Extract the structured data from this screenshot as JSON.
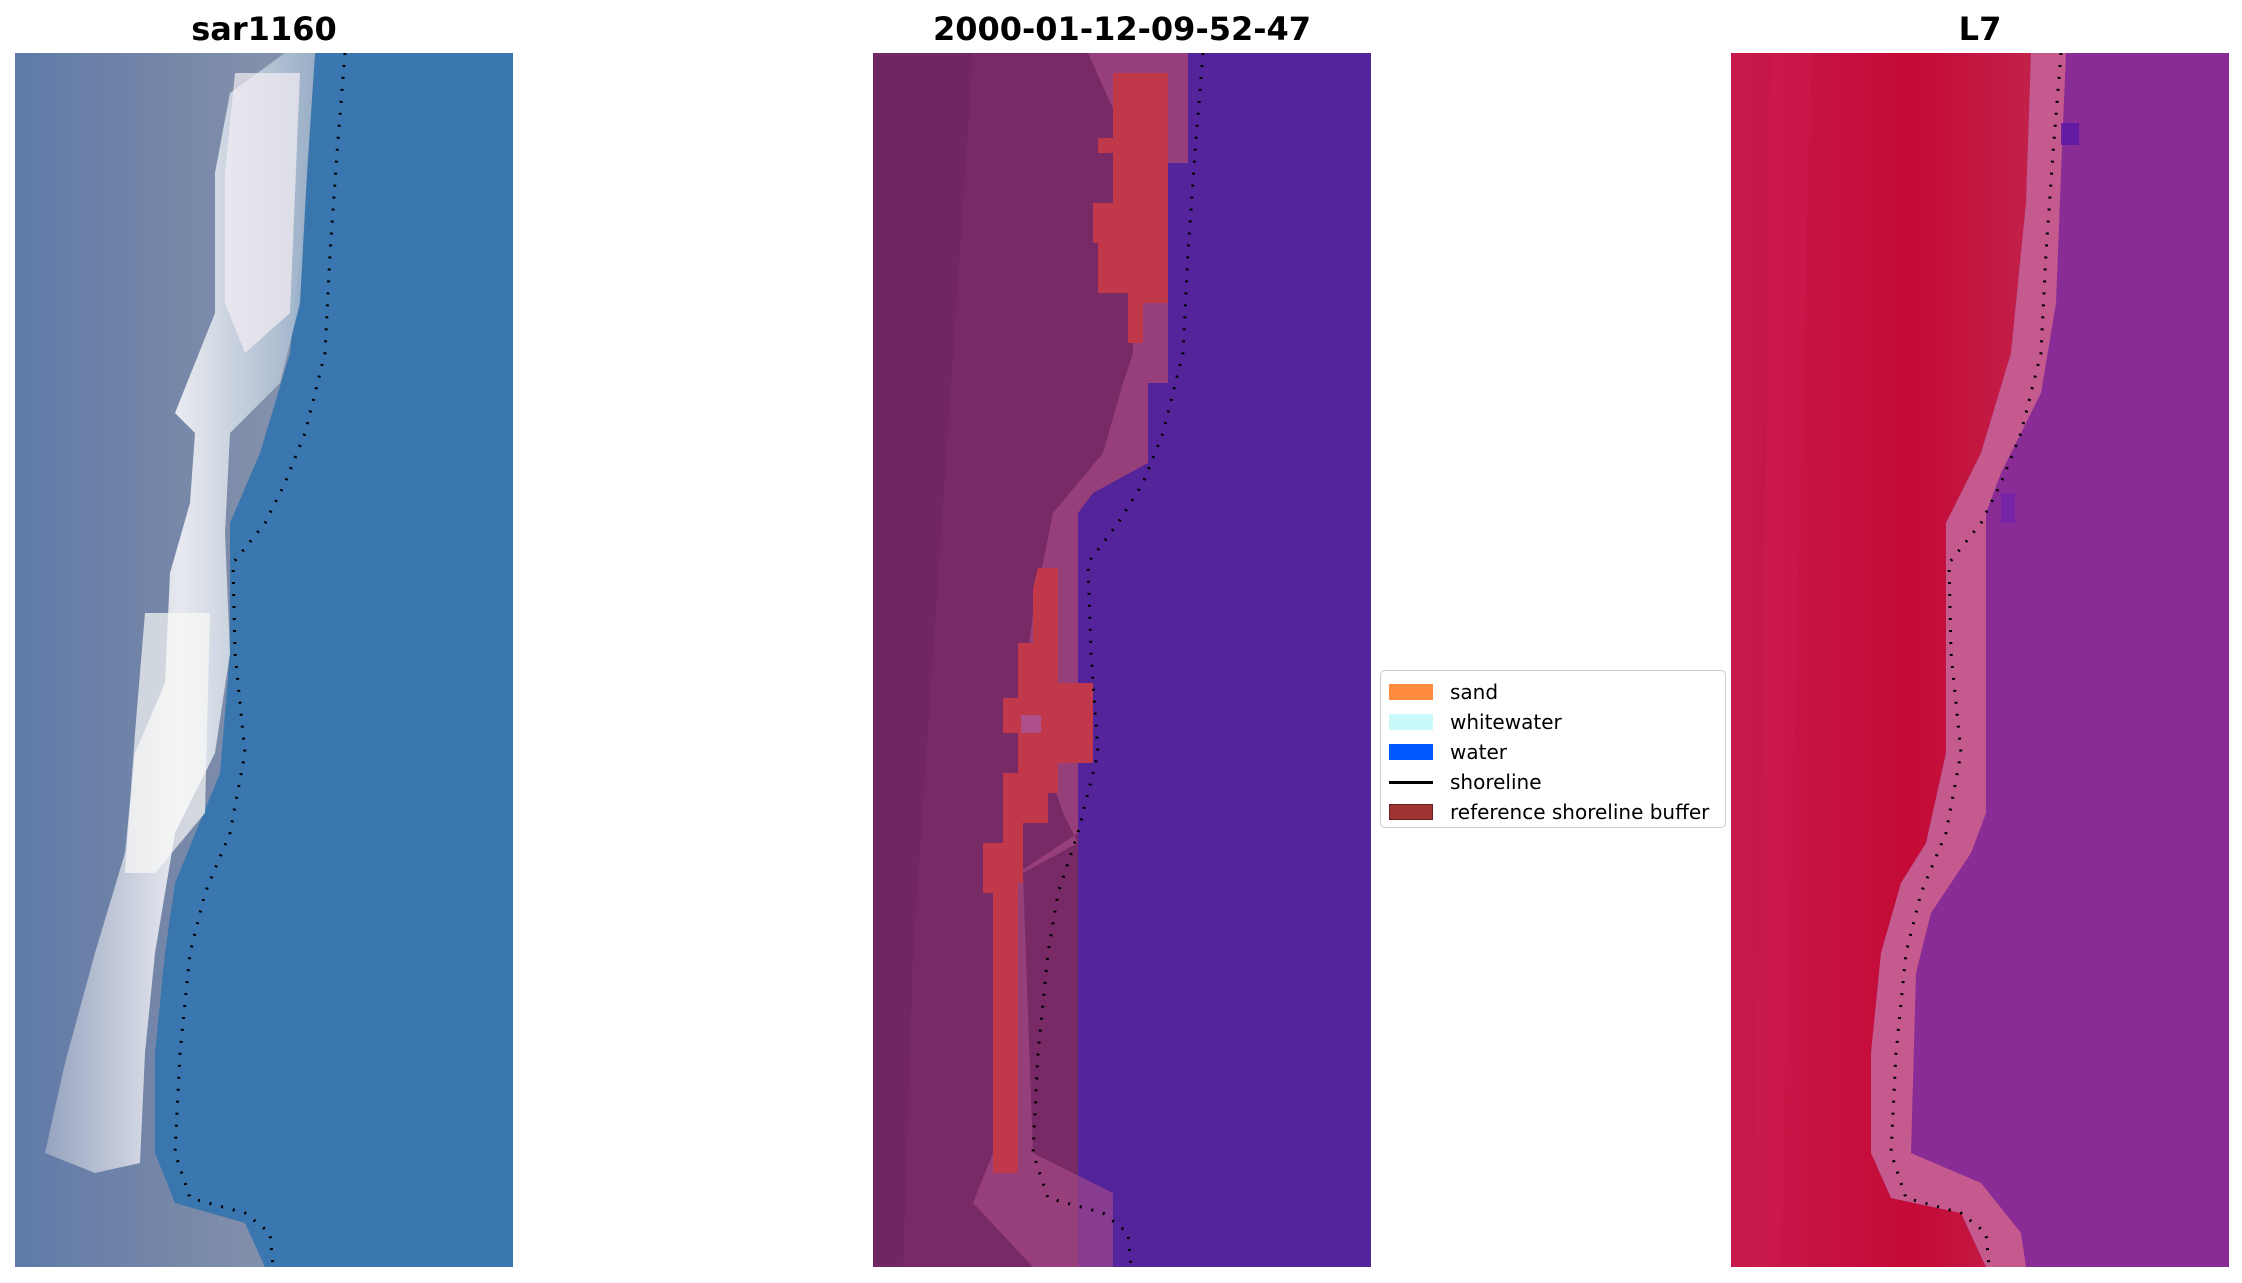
{
  "panels": [
    {
      "title": "sar1160"
    },
    {
      "title": "2000-01-12-09-52-47"
    },
    {
      "title": "L7"
    }
  ],
  "legend": {
    "items": [
      {
        "label": "sand",
        "color": "#ff8c3c",
        "kind": "patch"
      },
      {
        "label": "whitewater",
        "color": "#c8fafa",
        "kind": "patch"
      },
      {
        "label": "water",
        "color": "#005aff",
        "kind": "patch"
      },
      {
        "label": "shoreline",
        "color": "#000000",
        "kind": "line"
      },
      {
        "label": "reference shoreline buffer",
        "color": "#a03232",
        "kind": "patch"
      }
    ]
  },
  "colors": {
    "rgb_water": "#3b78ae",
    "rgb_land": "#6a7fa6",
    "rgb_surf": "#eef0f4",
    "class_water": "#54259a",
    "class_land": "#772a66",
    "class_buffer": "#c0384a",
    "ndwi_land": "#c40c3a",
    "ndwi_water": "#8a2c96"
  }
}
